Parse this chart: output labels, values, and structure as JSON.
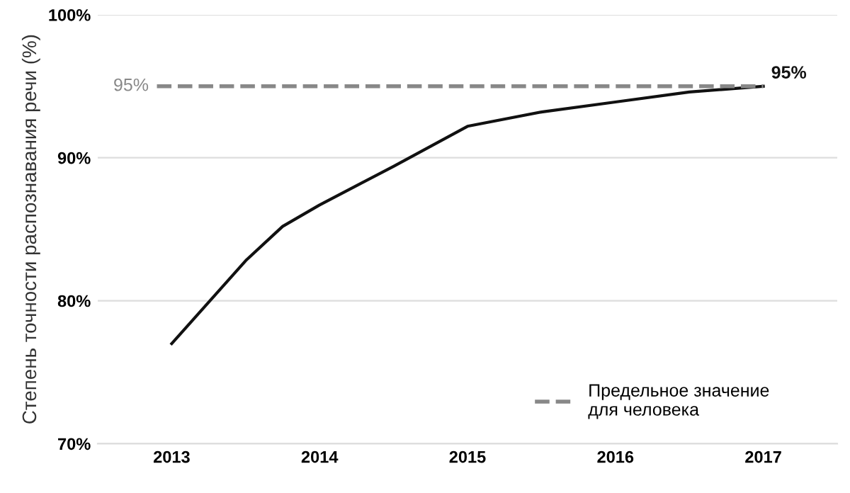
{
  "chart_data": {
    "type": "line",
    "ylabel": "Степень точности распознавания речи (%)",
    "x": [
      2013,
      2013.25,
      2013.5,
      2013.75,
      2014,
      2014.5,
      2015,
      2015.5,
      2016,
      2016.5,
      2017
    ],
    "series": [
      {
        "color": "#111111",
        "values": [
          77,
          79.9,
          82.8,
          85.2,
          86.7,
          89.4,
          92.2,
          93.2,
          93.9,
          94.6,
          95
        ]
      }
    ],
    "xlim": [
      2012.5,
      2017.5
    ],
    "xticks": [
      2013,
      2014,
      2015,
      2016,
      2017
    ],
    "ylim": [
      70,
      100
    ],
    "yticks": [
      {
        "value": 70,
        "label": "70%"
      },
      {
        "value": 80,
        "label": "80%"
      },
      {
        "value": 90,
        "label": "90%"
      },
      {
        "value": 100,
        "label": "100%"
      }
    ],
    "ref_lines": [
      {
        "axis": "y",
        "value": 95,
        "label": "Предельное значение\nдля человека",
        "color": "#888888",
        "line_style": "dashed"
      }
    ],
    "annotations": [
      {
        "text": "95%",
        "x": 2017,
        "y": 95
      },
      "95%"
    ],
    "grid": "y",
    "legend": "bottom right",
    "marker": "none",
    "line_style": "solid"
  }
}
